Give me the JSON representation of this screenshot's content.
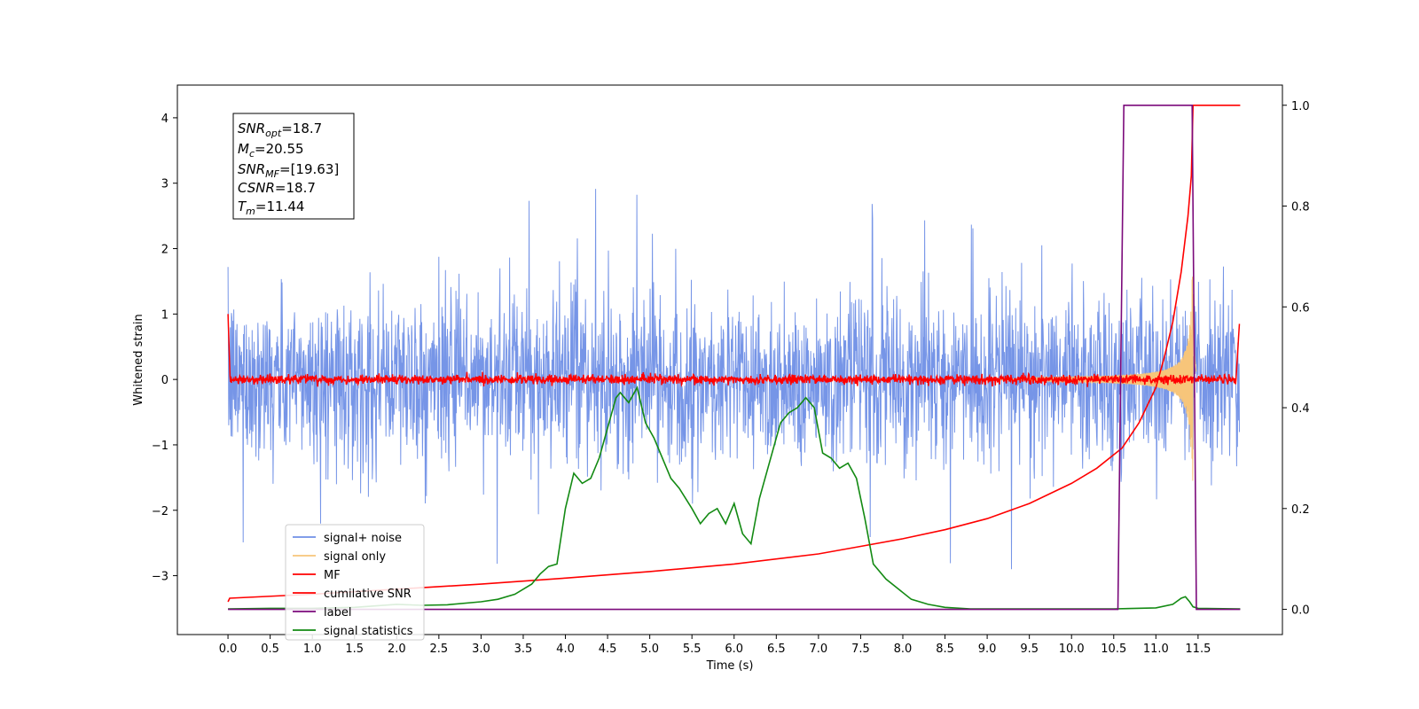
{
  "chart_data": {
    "type": "line",
    "xlabel": "Time (s)",
    "ylabel": "Whitened strain",
    "xlim": [
      -0.6,
      12.5
    ],
    "ylim": [
      -3.9,
      4.5
    ],
    "ylim_right": [
      -0.05,
      1.04
    ],
    "x_ticks": [
      "0.0",
      "0.5",
      "1.0",
      "1.5",
      "2.0",
      "2.5",
      "3.0",
      "3.5",
      "4.0",
      "4.5",
      "5.0",
      "5.5",
      "6.0",
      "6.5",
      "7.0",
      "7.5",
      "8.0",
      "8.5",
      "9.0",
      "9.5",
      "10.0",
      "10.5",
      "11.0",
      "11.5"
    ],
    "y_ticks": [
      "−3",
      "−2",
      "−1",
      "0",
      "1",
      "2",
      "3",
      "4"
    ],
    "y_right_ticks": [
      "0.0",
      "0.2",
      "0.4",
      "0.6",
      "0.8",
      "1.0"
    ],
    "grid": false,
    "legend_position": "lower-left",
    "info_box": {
      "snr_opt": {
        "sym": "SNR",
        "sub": "opt",
        "val": "=18.7"
      },
      "mc": {
        "sym": "M",
        "sub": "c",
        "val": "=20.55"
      },
      "snr_mf": {
        "sym": "SNR",
        "sub": "MF",
        "val": "=[19.63]"
      },
      "csnr": {
        "sym": "CSNR",
        "sub": "",
        "val": "=18.7"
      },
      "tm": {
        "sym": "T",
        "sub": "m",
        "val": "=11.44"
      }
    },
    "series": [
      {
        "name": "signal+ noise",
        "color": "#6f8fe6",
        "axis": "left",
        "amplitude": 1.05,
        "x_range": [
          0,
          11.99
        ]
      },
      {
        "name": "signal only",
        "color": "#f7c57a",
        "axis": "left",
        "chirp_start": 9.5,
        "merger": 11.44,
        "peak": 1.6
      },
      {
        "name": "MF",
        "color": "#ff0000",
        "axis": "left",
        "amplitude": 0.05,
        "x_range": [
          0,
          11.99
        ]
      },
      {
        "name": "cumilative SNR",
        "color": "#ff0000",
        "axis": "right",
        "x": [
          0,
          0.02,
          1,
          2,
          3,
          4,
          5,
          6,
          7,
          7.5,
          8,
          8.5,
          9,
          9.5,
          10,
          10.3,
          10.6,
          10.8,
          11.0,
          11.1,
          11.2,
          11.3,
          11.38,
          11.42,
          11.44,
          11.5,
          12.0
        ],
        "y": [
          0.015,
          0.022,
          0.03,
          0.04,
          0.05,
          0.062,
          0.075,
          0.09,
          0.11,
          0.125,
          0.14,
          0.158,
          0.18,
          0.21,
          0.25,
          0.28,
          0.32,
          0.37,
          0.44,
          0.5,
          0.57,
          0.67,
          0.78,
          0.86,
          1.0,
          1.0,
          1.0
        ]
      },
      {
        "name": "label",
        "color": "#7b0a7b",
        "axis": "right",
        "x": [
          0,
          10.55,
          10.62,
          11.43,
          11.48,
          12.0
        ],
        "y": [
          0,
          0,
          1,
          1,
          0,
          0
        ]
      },
      {
        "name": "signal statistics",
        "color": "#138a13",
        "axis": "right",
        "x": [
          0,
          0.5,
          1.0,
          1.5,
          2.0,
          2.3,
          2.6,
          3.0,
          3.2,
          3.4,
          3.5,
          3.6,
          3.7,
          3.8,
          3.9,
          4.0,
          4.1,
          4.2,
          4.3,
          4.4,
          4.5,
          4.6,
          4.65,
          4.75,
          4.85,
          4.95,
          5.05,
          5.15,
          5.25,
          5.35,
          5.5,
          5.6,
          5.7,
          5.8,
          5.9,
          6.0,
          6.1,
          6.2,
          6.3,
          6.4,
          6.5,
          6.55,
          6.65,
          6.75,
          6.85,
          6.95,
          7.05,
          7.15,
          7.25,
          7.35,
          7.45,
          7.55,
          7.65,
          7.8,
          7.95,
          8.1,
          8.3,
          8.5,
          8.8,
          9.2,
          10.0,
          10.5,
          11.0,
          11.2,
          11.3,
          11.35,
          11.4,
          11.44,
          11.5,
          12.0
        ],
        "y": [
          0.001,
          0.002,
          0.002,
          0.004,
          0.01,
          0.008,
          0.009,
          0.015,
          0.02,
          0.03,
          0.04,
          0.05,
          0.07,
          0.085,
          0.09,
          0.2,
          0.27,
          0.25,
          0.26,
          0.3,
          0.36,
          0.42,
          0.43,
          0.41,
          0.44,
          0.37,
          0.34,
          0.3,
          0.26,
          0.24,
          0.2,
          0.17,
          0.19,
          0.2,
          0.17,
          0.21,
          0.15,
          0.13,
          0.22,
          0.28,
          0.34,
          0.37,
          0.39,
          0.4,
          0.42,
          0.4,
          0.31,
          0.3,
          0.28,
          0.29,
          0.26,
          0.18,
          0.09,
          0.06,
          0.04,
          0.02,
          0.01,
          0.004,
          0.001,
          0.001,
          0.001,
          0.001,
          0.003,
          0.01,
          0.022,
          0.025,
          0.015,
          0.005,
          0.002,
          0.001
        ]
      }
    ]
  }
}
